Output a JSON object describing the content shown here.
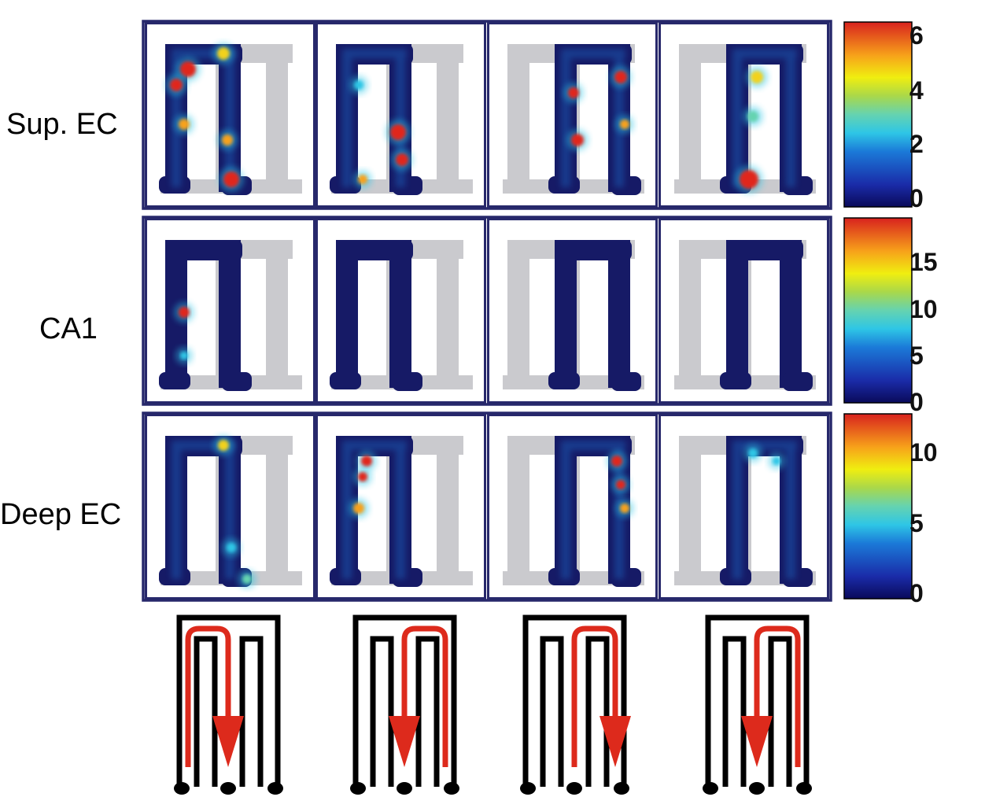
{
  "rows": [
    {
      "label": "Sup. EC",
      "colorbar_ticks": [
        "6",
        "4",
        "2",
        "0"
      ],
      "colorbar_max": 6.6
    },
    {
      "label": "CA1",
      "colorbar_ticks": [
        "15",
        "10",
        "5",
        "0"
      ],
      "colorbar_max": 19
    },
    {
      "label": "Deep EC",
      "colorbar_ticks": [
        "10",
        "5",
        "0"
      ],
      "colorbar_max": 12.5
    }
  ],
  "columns": [
    "trajectory 1",
    "trajectory 2",
    "trajectory 3",
    "trajectory 4"
  ],
  "colors": {
    "panel_border": "#27286b",
    "track_grey": "#c8c8cc",
    "map_low": "#161a66",
    "route_arrow": "#dd2a1c",
    "maze_outline": "#000000"
  }
}
